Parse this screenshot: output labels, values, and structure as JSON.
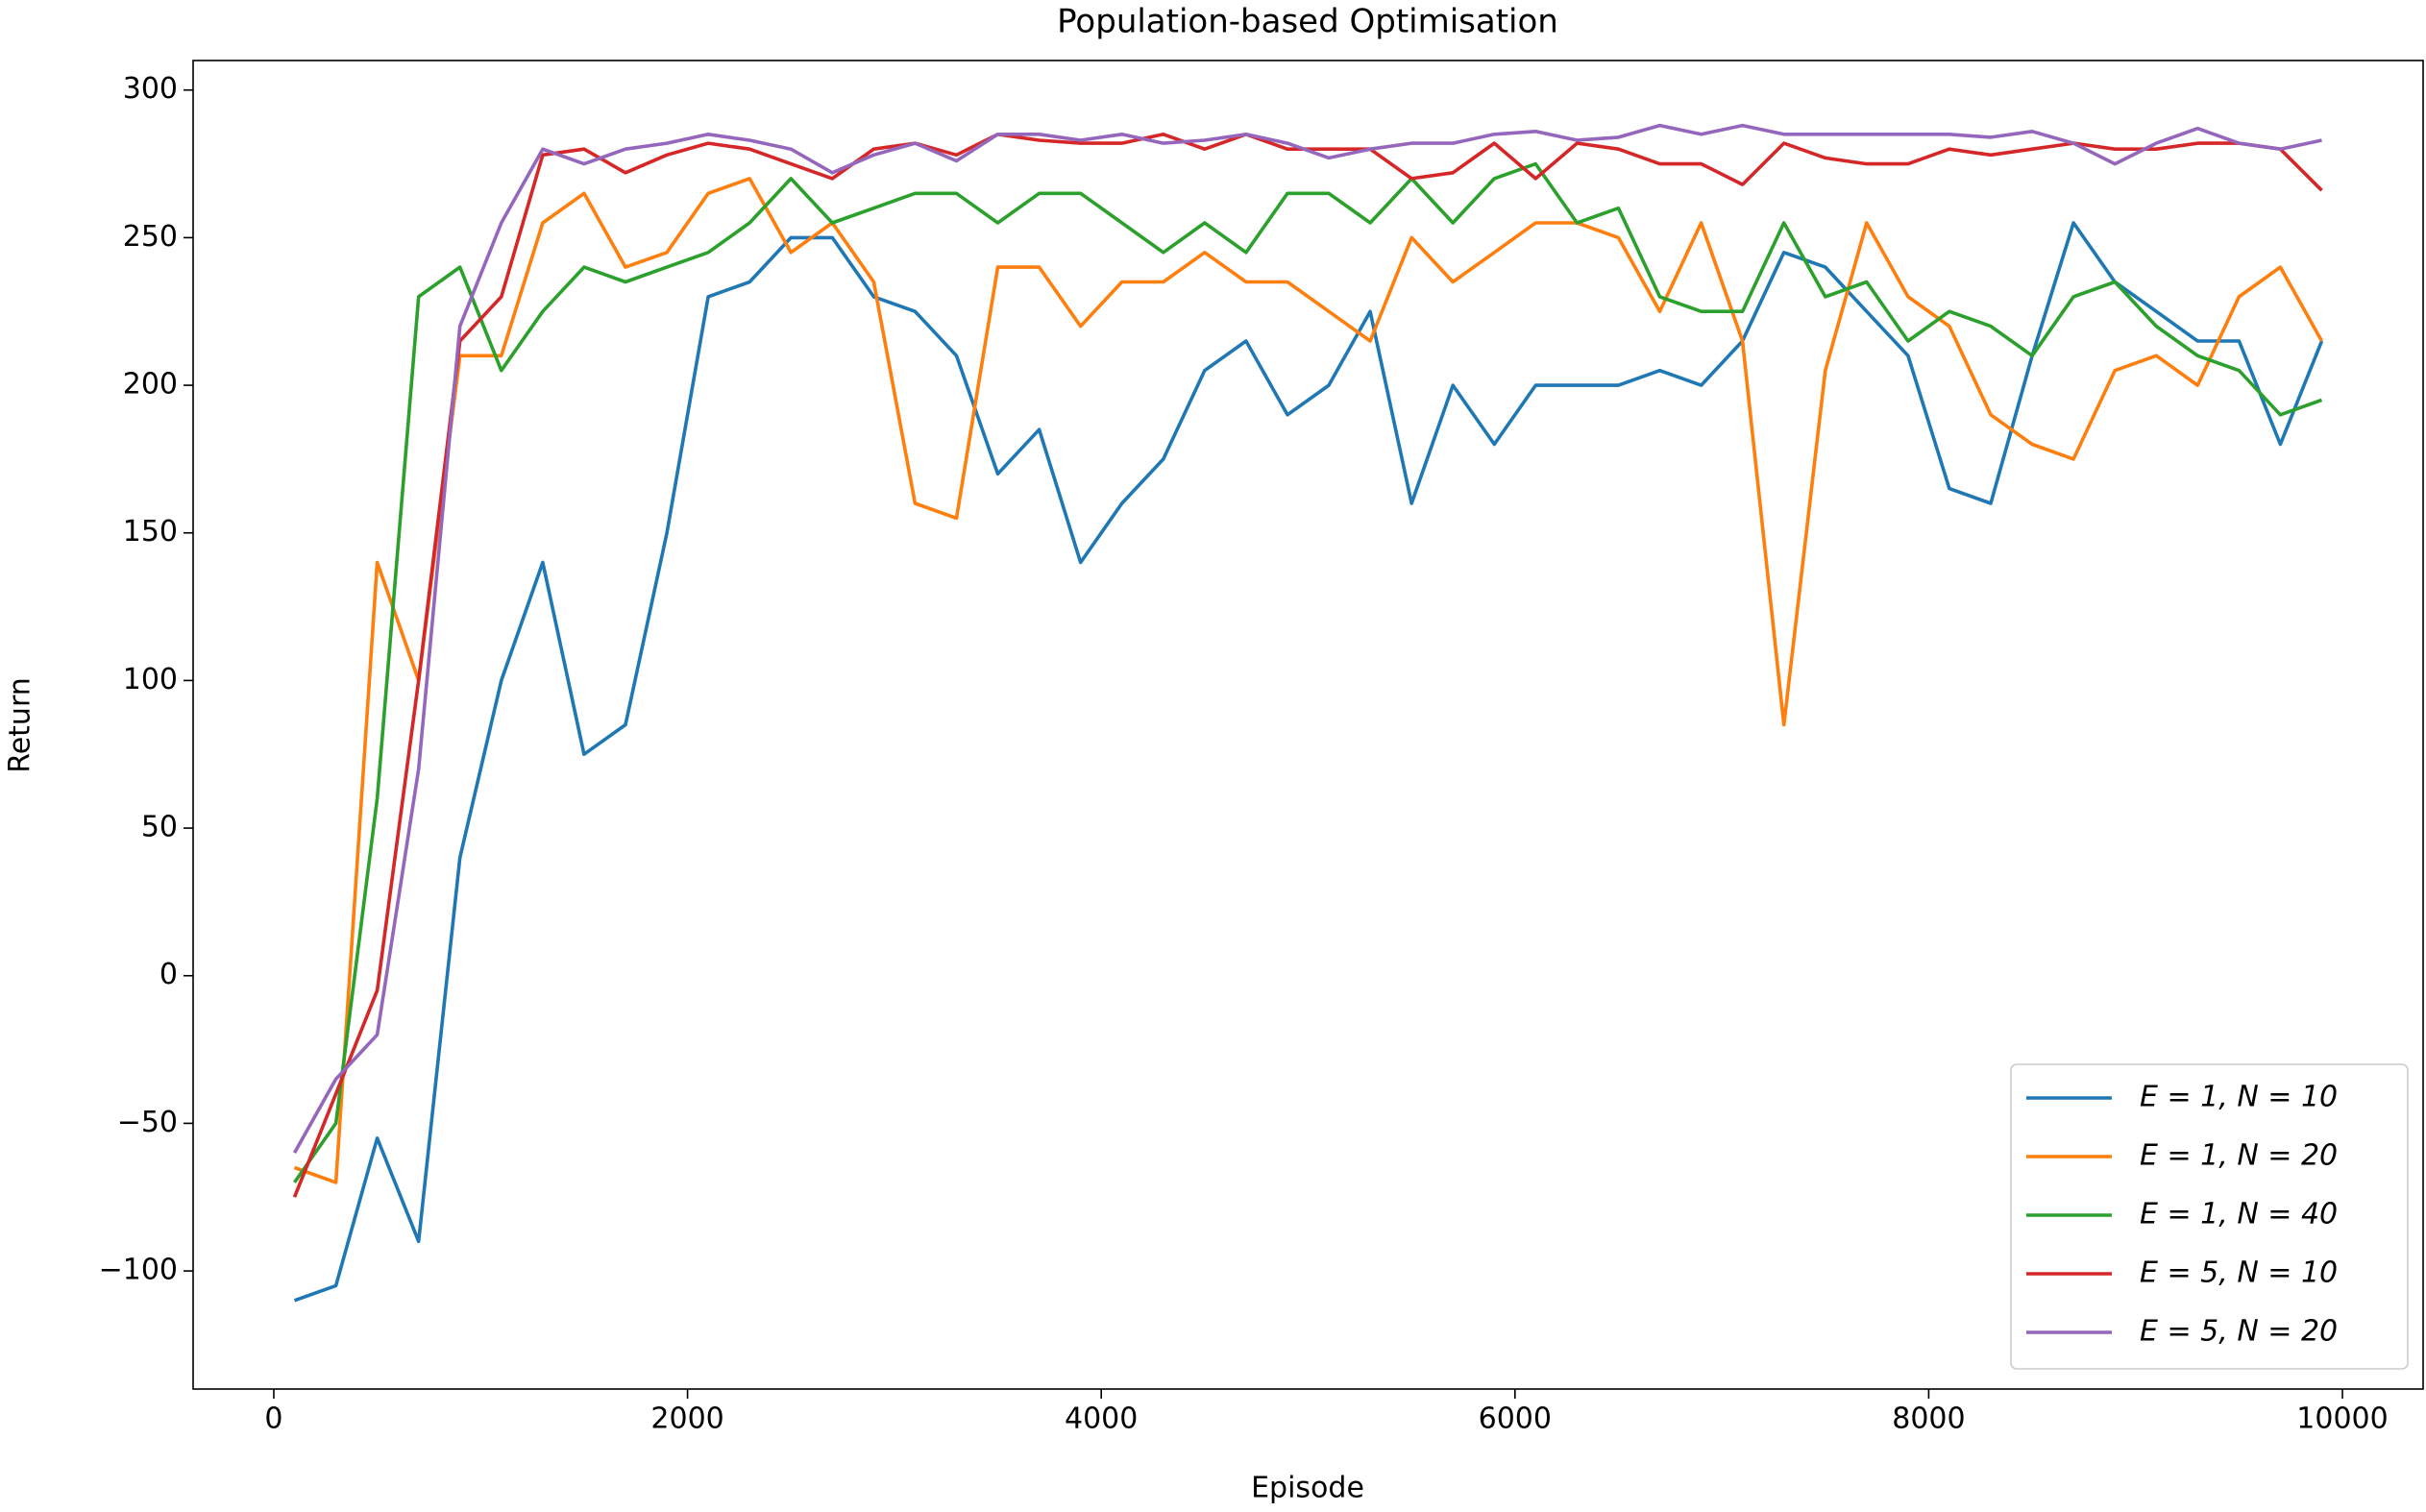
{
  "chart_data": {
    "type": "line",
    "title": "Population-based Optimisation",
    "x_label": "Episode",
    "y_label": "Return",
    "x": [
      100,
      300,
      500,
      700,
      900,
      1100,
      1300,
      1500,
      1700,
      1900,
      2100,
      2300,
      2500,
      2700,
      2900,
      3100,
      3300,
      3500,
      3700,
      3900,
      4100,
      4300,
      4500,
      4700,
      4900,
      5100,
      5300,
      5500,
      5700,
      5900,
      6100,
      6300,
      6500,
      6700,
      6900,
      7100,
      7300,
      7500,
      7700,
      7900,
      8100,
      8300,
      8500,
      8700,
      8900,
      9100,
      9300,
      9500,
      9700,
      9900
    ],
    "series": [
      {
        "name": "E = 1, N = 10",
        "color": "#1f77b4",
        "values": [
          -110,
          -105,
          -55,
          -90,
          40,
          100,
          140,
          75,
          85,
          150,
          230,
          235,
          250,
          250,
          230,
          225,
          210,
          170,
          185,
          140,
          160,
          175,
          205,
          215,
          190,
          200,
          225,
          160,
          200,
          180,
          200,
          200,
          200,
          205,
          200,
          215,
          245,
          240,
          225,
          210,
          165,
          160,
          210,
          255,
          235,
          225,
          215,
          215,
          180,
          215
        ]
      },
      {
        "name": "E = 1, N = 20",
        "color": "#ff7f0e",
        "values": [
          -65,
          -70,
          140,
          100,
          210,
          210,
          255,
          265,
          240,
          245,
          265,
          270,
          245,
          255,
          235,
          160,
          155,
          240,
          240,
          220,
          235,
          235,
          245,
          235,
          235,
          225,
          215,
          250,
          235,
          245,
          255,
          255,
          250,
          225,
          255,
          215,
          85,
          205,
          255,
          230,
          220,
          190,
          180,
          175,
          205,
          210,
          200,
          230,
          240,
          215
        ]
      },
      {
        "name": "E = 1, N = 40",
        "color": "#2ca02c",
        "values": [
          -70,
          -50,
          60,
          230,
          240,
          205,
          225,
          240,
          235,
          240,
          245,
          255,
          270,
          255,
          260,
          265,
          265,
          255,
          265,
          265,
          255,
          245,
          255,
          245,
          265,
          265,
          255,
          270,
          255,
          270,
          275,
          255,
          260,
          230,
          225,
          225,
          255,
          230,
          235,
          215,
          225,
          220,
          210,
          230,
          235,
          220,
          210,
          205,
          190,
          195
        ]
      },
      {
        "name": "E = 5, N = 10",
        "color": "#d62728",
        "values": [
          -75,
          -40,
          -5,
          100,
          215,
          230,
          278,
          280,
          272,
          278,
          282,
          280,
          275,
          270,
          280,
          282,
          278,
          285,
          283,
          282,
          282,
          285,
          280,
          285,
          280,
          280,
          280,
          270,
          272,
          282,
          270,
          282,
          280,
          275,
          275,
          268,
          282,
          277,
          275,
          275,
          280,
          278,
          280,
          282,
          280,
          280,
          282,
          282,
          280,
          266
        ]
      },
      {
        "name": "E = 5, N = 20",
        "color": "#9467bd",
        "values": [
          -60,
          -35,
          -20,
          70,
          220,
          255,
          280,
          275,
          280,
          282,
          285,
          283,
          280,
          272,
          278,
          282,
          276,
          285,
          285,
          283,
          285,
          282,
          283,
          285,
          282,
          277,
          280,
          282,
          282,
          285,
          286,
          283,
          284,
          288,
          285,
          288,
          285,
          285,
          285,
          285,
          285,
          284,
          286,
          282,
          275,
          282,
          287,
          282,
          280,
          283
        ]
      }
    ],
    "xlim": [
      -390,
      10390
    ],
    "ylim": [
      -140,
      310
    ],
    "xticks": [
      0,
      2000,
      4000,
      6000,
      8000,
      10000
    ],
    "yticks": [
      {
        "value": -100,
        "label": "−100"
      },
      {
        "value": -50,
        "label": "−50"
      },
      0,
      50,
      100,
      150,
      200,
      250,
      300
    ],
    "grid": false,
    "legend": "lower right"
  }
}
